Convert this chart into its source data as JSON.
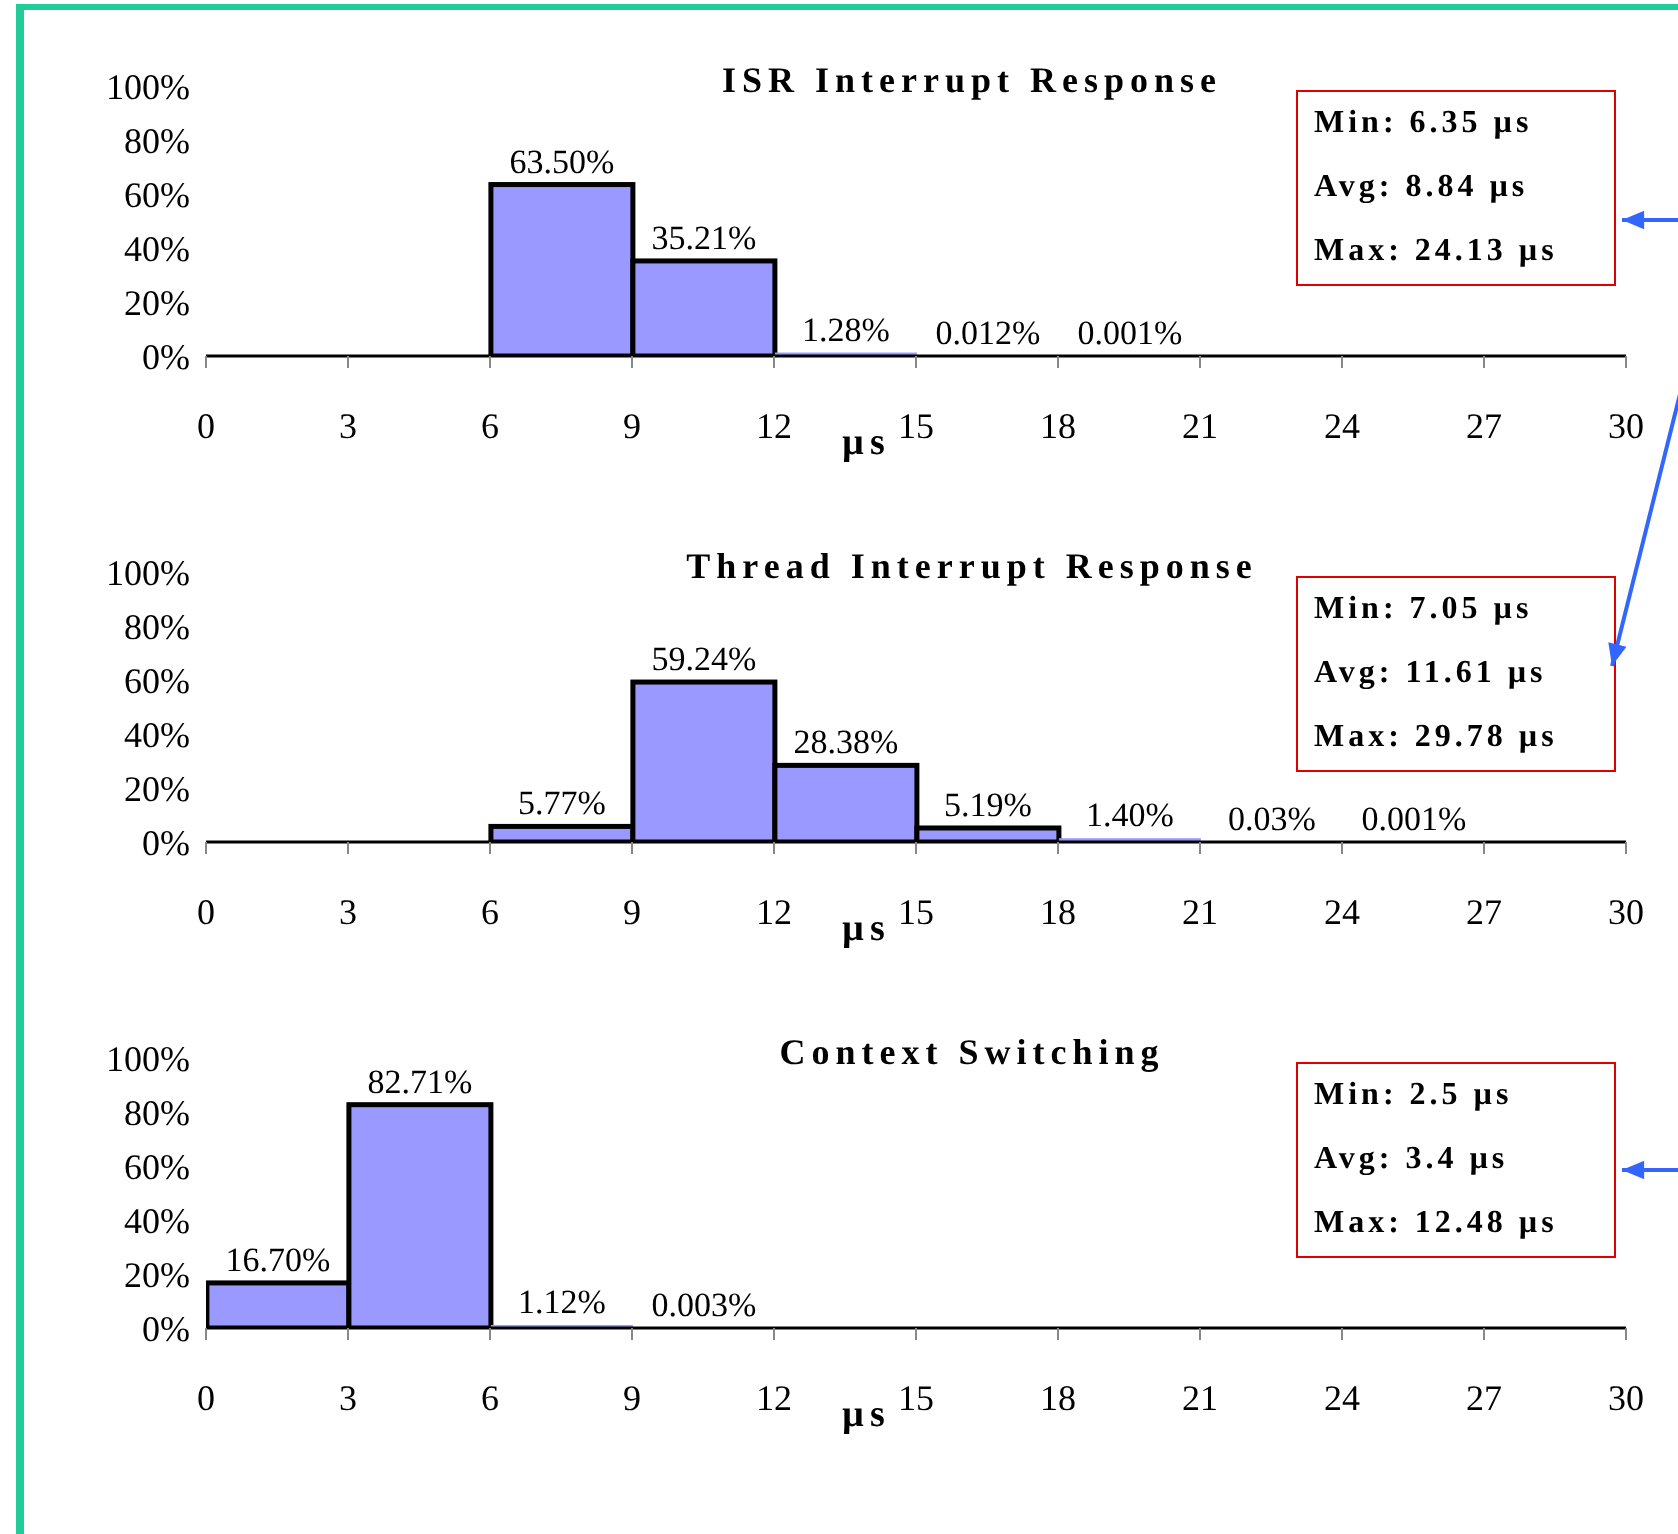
{
  "chart_data": [
    {
      "type": "histogram",
      "title": "ISR Interrupt Response",
      "xlabel": "µs",
      "bins": [
        0,
        3,
        6,
        9,
        12,
        15,
        18,
        21,
        24,
        27,
        30
      ],
      "values": [
        0,
        0,
        63.5,
        35.21,
        1.28,
        0.012,
        0.001,
        0,
        0,
        0
      ],
      "value_labels": [
        null,
        null,
        "63.50%",
        "35.21%",
        "1.28%",
        "0.012%",
        "0.001%",
        null,
        null,
        null
      ],
      "color": "#9999ff",
      "xlim": [
        0,
        30
      ],
      "xticks": [
        0,
        3,
        6,
        9,
        12,
        15,
        18,
        21,
        24,
        27,
        30
      ],
      "ylim": [
        0,
        100
      ],
      "yticks": [
        {
          "value": 0,
          "label": "0%"
        },
        {
          "value": 20,
          "label": "20%"
        },
        {
          "value": 40,
          "label": "40%"
        },
        {
          "value": 60,
          "label": "60%"
        },
        {
          "value": 80,
          "label": "80%"
        },
        {
          "value": 100,
          "label": "100%"
        }
      ],
      "annotations": [
        "Min: 6.35 µs",
        "Avg: 8.84 µs",
        "Max: 24.13 µs"
      ],
      "legend": false,
      "grid": false
    },
    {
      "type": "histogram",
      "title": "Thread Interrupt Response",
      "xlabel": "µs",
      "bins": [
        0,
        3,
        6,
        9,
        12,
        15,
        18,
        21,
        24,
        27,
        30
      ],
      "values": [
        0,
        0,
        5.77,
        59.24,
        28.38,
        5.19,
        1.4,
        0.03,
        0.001,
        0
      ],
      "value_labels": [
        null,
        null,
        "5.77%",
        "59.24%",
        "28.38%",
        "5.19%",
        "1.40%",
        "0.03%",
        "0.001%",
        null
      ],
      "color": "#9999ff",
      "xlim": [
        0,
        30
      ],
      "xticks": [
        0,
        3,
        6,
        9,
        12,
        15,
        18,
        21,
        24,
        27,
        30
      ],
      "ylim": [
        0,
        100
      ],
      "yticks": [
        {
          "value": 0,
          "label": "0%"
        },
        {
          "value": 20,
          "label": "20%"
        },
        {
          "value": 40,
          "label": "40%"
        },
        {
          "value": 60,
          "label": "60%"
        },
        {
          "value": 80,
          "label": "80%"
        },
        {
          "value": 100,
          "label": "100%"
        }
      ],
      "annotations": [
        "Min: 7.05 µs",
        "Avg: 11.61 µs",
        "Max: 29.78 µs"
      ],
      "legend": false,
      "grid": false
    },
    {
      "type": "histogram",
      "title": "Context Switching",
      "xlabel": "µs",
      "bins": [
        0,
        3,
        6,
        9,
        12,
        15,
        18,
        21,
        24,
        27,
        30
      ],
      "values": [
        16.7,
        82.71,
        1.12,
        0.003,
        0,
        0,
        0,
        0,
        0,
        0
      ],
      "value_labels": [
        "16.70%",
        "82.71%",
        "1.12%",
        "0.003%",
        null,
        null,
        null,
        null,
        null,
        null
      ],
      "color": "#9999ff",
      "xlim": [
        0,
        30
      ],
      "xticks": [
        0,
        3,
        6,
        9,
        12,
        15,
        18,
        21,
        24,
        27,
        30
      ],
      "ylim": [
        0,
        100
      ],
      "yticks": [
        {
          "value": 0,
          "label": "0%"
        },
        {
          "value": 20,
          "label": "20%"
        },
        {
          "value": 40,
          "label": "40%"
        },
        {
          "value": 60,
          "label": "60%"
        },
        {
          "value": 80,
          "label": "80%"
        },
        {
          "value": 100,
          "label": "100%"
        }
      ],
      "annotations": [
        "Min: 2.5 µs",
        "Avg: 3.4 µs",
        "Max: 12.48 µs"
      ],
      "legend": false,
      "grid": false
    }
  ]
}
